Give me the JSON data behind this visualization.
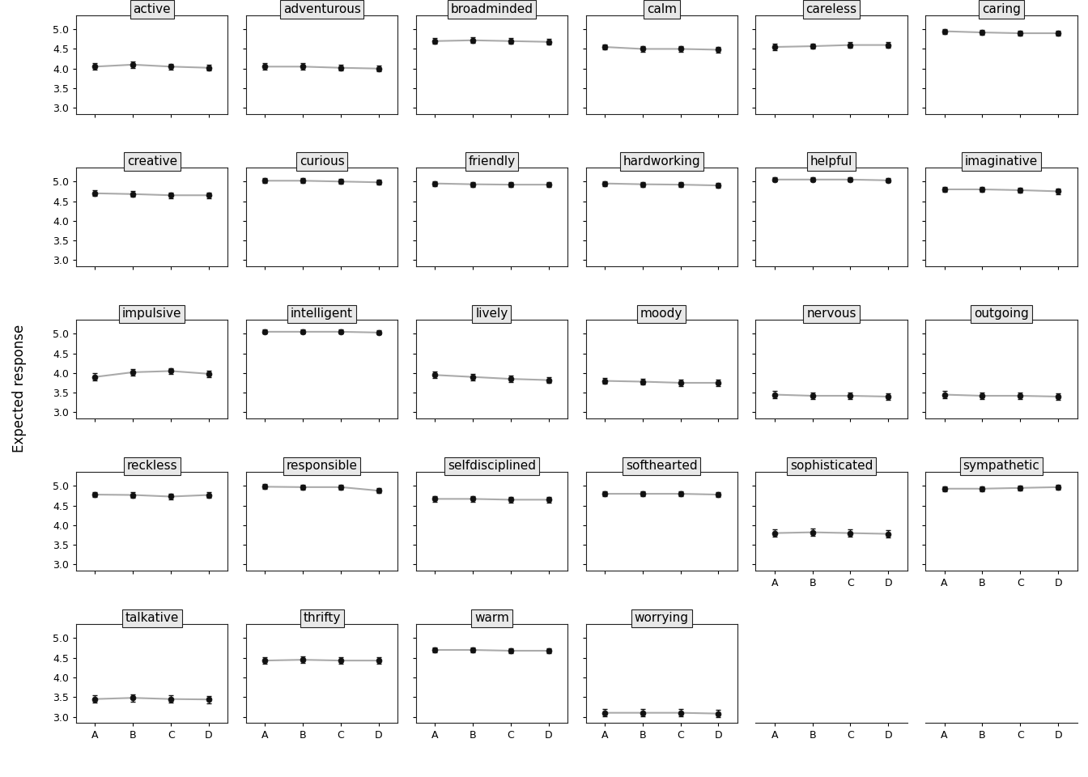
{
  "items": [
    {
      "name": "active",
      "row": 0,
      "col": 0,
      "values": [
        4.05,
        4.1,
        4.05,
        4.02
      ],
      "errors": [
        0.08,
        0.08,
        0.07,
        0.07
      ]
    },
    {
      "name": "adventurous",
      "row": 0,
      "col": 1,
      "values": [
        4.05,
        4.05,
        4.02,
        4.0
      ],
      "errors": [
        0.08,
        0.08,
        0.07,
        0.07
      ]
    },
    {
      "name": "broadminded",
      "row": 0,
      "col": 2,
      "values": [
        4.7,
        4.72,
        4.7,
        4.68
      ],
      "errors": [
        0.07,
        0.07,
        0.07,
        0.07
      ]
    },
    {
      "name": "calm",
      "row": 0,
      "col": 3,
      "values": [
        4.55,
        4.5,
        4.5,
        4.48
      ],
      "errors": [
        0.07,
        0.07,
        0.07,
        0.07
      ]
    },
    {
      "name": "careless",
      "row": 0,
      "col": 4,
      "values": [
        4.55,
        4.57,
        4.6,
        4.6
      ],
      "errors": [
        0.08,
        0.07,
        0.07,
        0.07
      ]
    },
    {
      "name": "caring",
      "row": 0,
      "col": 5,
      "values": [
        4.95,
        4.92,
        4.9,
        4.9
      ],
      "errors": [
        0.06,
        0.06,
        0.06,
        0.06
      ]
    },
    {
      "name": "creative",
      "row": 1,
      "col": 0,
      "values": [
        4.7,
        4.68,
        4.65,
        4.65
      ],
      "errors": [
        0.07,
        0.07,
        0.07,
        0.07
      ]
    },
    {
      "name": "curious",
      "row": 1,
      "col": 1,
      "values": [
        5.02,
        5.02,
        5.0,
        4.98
      ],
      "errors": [
        0.06,
        0.06,
        0.06,
        0.06
      ]
    },
    {
      "name": "friendly",
      "row": 1,
      "col": 2,
      "values": [
        4.95,
        4.93,
        4.92,
        4.92
      ],
      "errors": [
        0.06,
        0.06,
        0.06,
        0.06
      ]
    },
    {
      "name": "hardworking",
      "row": 1,
      "col": 3,
      "values": [
        4.95,
        4.93,
        4.92,
        4.9
      ],
      "errors": [
        0.06,
        0.06,
        0.06,
        0.06
      ]
    },
    {
      "name": "helpful",
      "row": 1,
      "col": 4,
      "values": [
        5.05,
        5.05,
        5.05,
        5.03
      ],
      "errors": [
        0.05,
        0.05,
        0.05,
        0.05
      ]
    },
    {
      "name": "imaginative",
      "row": 1,
      "col": 5,
      "values": [
        4.8,
        4.8,
        4.78,
        4.75
      ],
      "errors": [
        0.07,
        0.07,
        0.07,
        0.07
      ]
    },
    {
      "name": "impulsive",
      "row": 2,
      "col": 0,
      "values": [
        3.9,
        4.02,
        4.05,
        3.98
      ],
      "errors": [
        0.09,
        0.08,
        0.08,
        0.08
      ]
    },
    {
      "name": "intelligent",
      "row": 2,
      "col": 1,
      "values": [
        5.05,
        5.05,
        5.05,
        5.03
      ],
      "errors": [
        0.05,
        0.05,
        0.05,
        0.05
      ]
    },
    {
      "name": "lively",
      "row": 2,
      "col": 2,
      "values": [
        3.95,
        3.9,
        3.85,
        3.82
      ],
      "errors": [
        0.08,
        0.08,
        0.08,
        0.08
      ]
    },
    {
      "name": "moody",
      "row": 2,
      "col": 3,
      "values": [
        3.8,
        3.78,
        3.75,
        3.75
      ],
      "errors": [
        0.08,
        0.08,
        0.08,
        0.08
      ]
    },
    {
      "name": "nervous",
      "row": 2,
      "col": 4,
      "values": [
        3.45,
        3.42,
        3.42,
        3.4
      ],
      "errors": [
        0.09,
        0.09,
        0.09,
        0.09
      ]
    },
    {
      "name": "outgoing",
      "row": 2,
      "col": 5,
      "values": [
        3.45,
        3.42,
        3.42,
        3.4
      ],
      "errors": [
        0.09,
        0.09,
        0.09,
        0.09
      ]
    },
    {
      "name": "reckless",
      "row": 3,
      "col": 0,
      "values": [
        4.78,
        4.77,
        4.73,
        4.77
      ],
      "errors": [
        0.07,
        0.07,
        0.07,
        0.07
      ]
    },
    {
      "name": "responsible",
      "row": 3,
      "col": 1,
      "values": [
        4.98,
        4.97,
        4.97,
        4.88
      ],
      "errors": [
        0.06,
        0.06,
        0.06,
        0.06
      ]
    },
    {
      "name": "selfdisciplined",
      "row": 3,
      "col": 2,
      "values": [
        4.67,
        4.67,
        4.65,
        4.65
      ],
      "errors": [
        0.07,
        0.07,
        0.07,
        0.07
      ]
    },
    {
      "name": "softhearted",
      "row": 3,
      "col": 3,
      "values": [
        4.8,
        4.8,
        4.8,
        4.78
      ],
      "errors": [
        0.07,
        0.07,
        0.07,
        0.07
      ]
    },
    {
      "name": "sophisticated",
      "row": 3,
      "col": 4,
      "values": [
        3.8,
        3.82,
        3.8,
        3.78
      ],
      "errors": [
        0.09,
        0.09,
        0.09,
        0.09
      ]
    },
    {
      "name": "sympathetic",
      "row": 3,
      "col": 5,
      "values": [
        4.93,
        4.93,
        4.95,
        4.97
      ],
      "errors": [
        0.06,
        0.06,
        0.06,
        0.06
      ]
    },
    {
      "name": "talkative",
      "row": 4,
      "col": 0,
      "values": [
        3.45,
        3.48,
        3.45,
        3.44
      ],
      "errors": [
        0.09,
        0.09,
        0.09,
        0.09
      ]
    },
    {
      "name": "thrifty",
      "row": 4,
      "col": 1,
      "values": [
        4.43,
        4.45,
        4.43,
        4.43
      ],
      "errors": [
        0.08,
        0.08,
        0.08,
        0.08
      ]
    },
    {
      "name": "warm",
      "row": 4,
      "col": 2,
      "values": [
        4.7,
        4.7,
        4.68,
        4.68
      ],
      "errors": [
        0.07,
        0.07,
        0.07,
        0.07
      ]
    },
    {
      "name": "worrying",
      "row": 4,
      "col": 3,
      "values": [
        3.1,
        3.1,
        3.1,
        3.08
      ],
      "errors": [
        0.09,
        0.09,
        0.09,
        0.09
      ]
    }
  ],
  "nrows": 5,
  "ncols": 6,
  "x_labels": [
    "A",
    "B",
    "C",
    "D"
  ],
  "yticks": [
    3.0,
    3.5,
    4.0,
    4.5,
    5.0
  ],
  "ylim": [
    2.85,
    5.35
  ],
  "ylabel": "Expected response",
  "line_color": "#aaaaaa",
  "marker_color": "#111111",
  "title_box_facecolor": "#e8e8e8",
  "title_box_edgecolor": "#222222",
  "background_color": "#ffffff",
  "subplot_title_fontsize": 11,
  "ylabel_fontsize": 12,
  "tick_fontsize": 9
}
